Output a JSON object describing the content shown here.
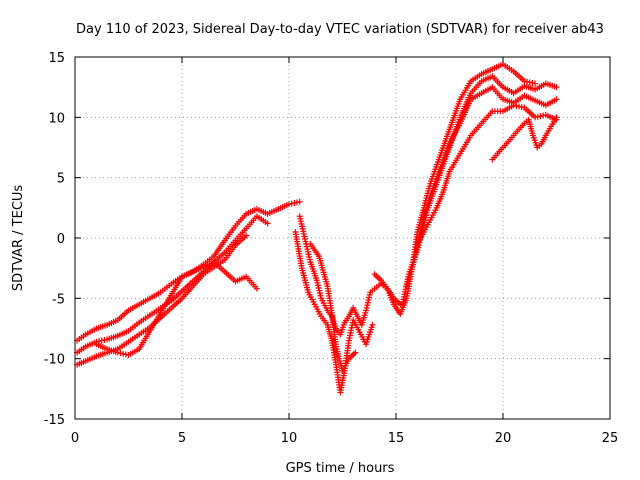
{
  "chart_data": {
    "type": "scatter",
    "title": "Day 110 of 2023, Sidereal Day-to-day VTEC variation (SDTVAR) for receiver ab43",
    "xlabel": "GPS time / hours",
    "ylabel": "SDTVAR / TECUs",
    "xlim": [
      0,
      25
    ],
    "ylim": [
      -15,
      15
    ],
    "xticks": [
      0,
      5,
      10,
      15,
      20,
      25
    ],
    "yticks": [
      -15,
      -10,
      -5,
      0,
      5,
      10,
      15
    ],
    "xtick_labels": [
      "0",
      "5",
      "10",
      "15",
      "20",
      "25"
    ],
    "ytick_labels": [
      "-15",
      "-10",
      "-5",
      "0",
      "5",
      "10",
      "15"
    ],
    "grid": true,
    "marker": "+",
    "color": "#ff0000",
    "series": [
      {
        "x": [
          0.1,
          0.5,
          1.0,
          1.5,
          2.0,
          2.5,
          3.0,
          3.5,
          4.0,
          4.5,
          5.0,
          5.5,
          6.0,
          6.5,
          7.0,
          7.5,
          8.0,
          8.5,
          9.0,
          9.5,
          10.0,
          10.5
        ],
        "y": [
          -8.5,
          -8.0,
          -7.5,
          -7.2,
          -6.8,
          -6.0,
          -5.5,
          -5.0,
          -4.5,
          -3.8,
          -3.2,
          -2.8,
          -2.2,
          -1.5,
          -0.2,
          1.0,
          2.0,
          2.4,
          2.0,
          2.4,
          2.8,
          3.0
        ]
      },
      {
        "x": [
          0.1,
          0.5,
          1.0,
          1.5,
          2.0,
          2.5,
          3.0,
          3.5,
          4.0,
          4.5,
          5.0,
          5.5,
          6.0,
          6.5,
          7.0,
          7.5,
          8.0,
          8.5,
          9.0
        ],
        "y": [
          -9.5,
          -9.0,
          -8.6,
          -8.4,
          -8.1,
          -7.7,
          -7.0,
          -6.4,
          -5.8,
          -5.2,
          -4.4,
          -3.6,
          -2.8,
          -2.0,
          -1.2,
          -0.2,
          0.8,
          1.8,
          1.2
        ]
      },
      {
        "x": [
          0.1,
          0.5,
          1.0,
          1.5,
          2.0,
          2.5,
          3.0,
          3.5,
          4.0,
          4.5,
          5.0,
          6.0,
          6.5,
          7.0,
          7.5,
          8.0
        ],
        "y": [
          -10.5,
          -10.2,
          -9.8,
          -9.5,
          -9.2,
          -8.6,
          -8.0,
          -7.4,
          -6.6,
          -5.8,
          -5.0,
          -3.0,
          -2.4,
          -1.8,
          -0.6,
          0.2
        ]
      },
      {
        "x": [
          1.0,
          1.5,
          2.0,
          2.5,
          3.0,
          5.0,
          6.0,
          6.5,
          7.0,
          7.5,
          8.0,
          8.5
        ],
        "y": [
          -8.8,
          -9.2,
          -9.5,
          -9.7,
          -9.2,
          -3.2,
          -2.4,
          -2.0,
          -2.8,
          -3.6,
          -3.2,
          -4.2
        ]
      },
      {
        "x": [
          10.5,
          10.8,
          11.0,
          11.3,
          11.5,
          11.8,
          12.0,
          12.2,
          12.4,
          12.6,
          12.8,
          13.0,
          13.2,
          13.4,
          13.6,
          13.8,
          14.0,
          14.3,
          14.6,
          14.9,
          15.2
        ],
        "y": [
          1.8,
          -0.5,
          -2.0,
          -3.5,
          -5.0,
          -6.0,
          -6.5,
          -7.5,
          -8.0,
          -7.0,
          -6.5,
          -5.8,
          -6.5,
          -7.2,
          -6.0,
          -4.5,
          -4.2,
          -3.8,
          -4.2,
          -5.0,
          -5.5
        ]
      },
      {
        "x": [
          10.3,
          10.6,
          10.9,
          11.2,
          11.5,
          11.8,
          12.0,
          12.2,
          12.4,
          12.6,
          12.8,
          13.0,
          13.3,
          13.6,
          13.9
        ],
        "y": [
          0.5,
          -2.5,
          -4.5,
          -5.5,
          -6.5,
          -7.2,
          -8.5,
          -10.5,
          -12.8,
          -11.0,
          -8.5,
          -6.8,
          -7.8,
          -8.8,
          -7.2
        ]
      },
      {
        "x": [
          11.0,
          11.4,
          11.8,
          12.0,
          12.2,
          12.5,
          12.8,
          13.1
        ],
        "y": [
          -0.5,
          -1.5,
          -4.0,
          -6.2,
          -9.0,
          -11.0,
          -10.0,
          -9.5
        ]
      },
      {
        "x": [
          14.0,
          14.3,
          14.6,
          14.9,
          15.2,
          15.5,
          15.8,
          16.0,
          16.3,
          16.6,
          17.0,
          17.5,
          18.0,
          18.5,
          19.0,
          19.5,
          20.0,
          20.5,
          21.0,
          21.5
        ],
        "y": [
          -3.0,
          -3.5,
          -4.2,
          -5.5,
          -6.3,
          -5.0,
          -2.0,
          0.5,
          2.5,
          4.5,
          6.5,
          9.0,
          11.5,
          13.0,
          13.6,
          14.0,
          14.4,
          13.8,
          13.0,
          12.8
        ]
      },
      {
        "x": [
          15.3,
          15.6,
          16.0,
          16.5,
          17.0,
          17.5,
          18.0,
          18.5,
          19.0,
          19.5,
          20.0,
          20.5,
          21.0,
          21.5,
          22.0,
          22.5
        ],
        "y": [
          -5.5,
          -3.0,
          -1.0,
          2.5,
          5.0,
          7.5,
          10.0,
          12.0,
          13.0,
          13.4,
          12.5,
          12.0,
          12.6,
          12.3,
          12.8,
          12.5
        ]
      },
      {
        "x": [
          15.5,
          15.8,
          16.0,
          16.3,
          16.6,
          17.0,
          17.5,
          18.0,
          18.5,
          19.0,
          19.5,
          20.0,
          20.5,
          21.0,
          21.5,
          22.0,
          22.5
        ],
        "y": [
          -4.0,
          -2.2,
          -0.5,
          1.8,
          3.5,
          5.5,
          7.8,
          9.5,
          11.5,
          12.0,
          12.5,
          11.5,
          11.2,
          11.8,
          11.4,
          11.0,
          11.5
        ]
      },
      {
        "x": [
          16.0,
          16.3,
          16.6,
          16.9,
          17.2,
          17.5,
          18.0,
          18.5,
          19.0,
          19.5,
          20.0,
          20.5,
          21.0,
          21.5,
          22.0,
          22.5
        ],
        "y": [
          -0.5,
          0.5,
          1.5,
          2.5,
          3.8,
          5.5,
          7.0,
          8.5,
          9.5,
          10.5,
          10.5,
          11.0,
          10.8,
          10.0,
          10.2,
          9.8
        ]
      },
      {
        "x": [
          19.5,
          20.0,
          20.5,
          21.0,
          21.2,
          21.4,
          21.6,
          21.8,
          22.0,
          22.5
        ],
        "y": [
          6.5,
          7.5,
          8.5,
          9.5,
          9.8,
          8.5,
          7.5,
          7.8,
          8.5,
          10.0
        ]
      }
    ]
  }
}
